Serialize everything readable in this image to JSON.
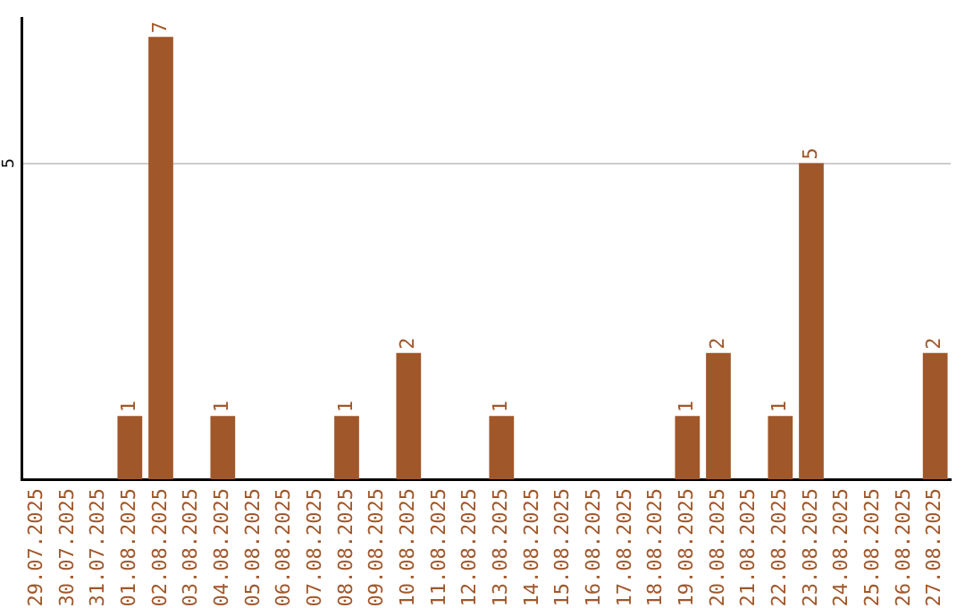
{
  "chart_data": {
    "type": "bar",
    "categories": [
      "29.07.2025",
      "30.07.2025",
      "31.07.2025",
      "01.08.2025",
      "02.08.2025",
      "03.08.2025",
      "04.08.2025",
      "05.08.2025",
      "06.08.2025",
      "07.08.2025",
      "08.08.2025",
      "09.08.2025",
      "10.08.2025",
      "11.08.2025",
      "12.08.2025",
      "13.08.2025",
      "14.08.2025",
      "15.08.2025",
      "16.08.2025",
      "17.08.2025",
      "18.08.2025",
      "19.08.2025",
      "20.08.2025",
      "21.08.2025",
      "22.08.2025",
      "23.08.2025",
      "24.08.2025",
      "25.08.2025",
      "26.08.2025",
      "27.08.2025"
    ],
    "values": [
      0,
      0,
      0,
      1,
      7,
      0,
      1,
      0,
      0,
      0,
      1,
      0,
      2,
      0,
      0,
      1,
      0,
      0,
      0,
      0,
      0,
      1,
      2,
      0,
      1,
      5,
      0,
      0,
      0,
      2
    ],
    "value_labels": [
      null,
      null,
      null,
      "1",
      "7",
      null,
      "1",
      null,
      null,
      null,
      "1",
      null,
      "2",
      null,
      null,
      "1",
      null,
      null,
      null,
      null,
      null,
      "1",
      "2",
      null,
      "1",
      "5",
      null,
      null,
      null,
      "2"
    ],
    "color": "#a0572a",
    "ylim": [
      0,
      7.3
    ],
    "yticks": [
      5
    ],
    "grid": "y",
    "legend": false
  }
}
